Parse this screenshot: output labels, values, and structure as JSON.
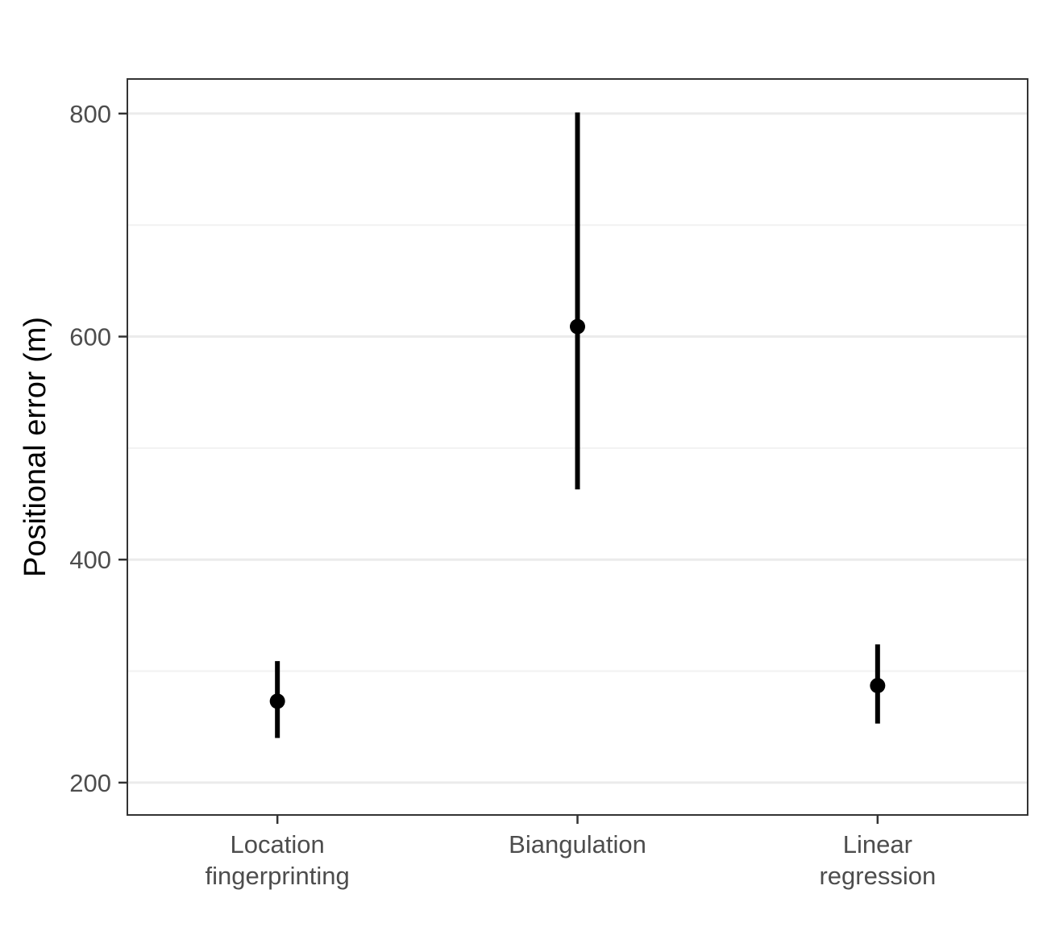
{
  "chart_data": {
    "type": "pointrange",
    "title": "",
    "xlabel": "",
    "ylabel": "Positional error (m)",
    "categories": [
      "Location\nfingerprinting",
      "Biangulation",
      "Linear\nregression"
    ],
    "series": [
      {
        "values": [
          273,
          609,
          287
        ],
        "lower": [
          240,
          463,
          253
        ],
        "upper": [
          309,
          801,
          324
        ]
      }
    ],
    "yticks": [
      200,
      400,
      600,
      800
    ],
    "ylim": [
      171,
      831
    ],
    "grid": true,
    "legend": "none",
    "colors": {
      "mark": "#000000",
      "grid_major": "#ebebeb",
      "grid_minor": "#f2f2f2",
      "panel_border": "#333333",
      "tick_label": "#4d4d4d"
    }
  }
}
